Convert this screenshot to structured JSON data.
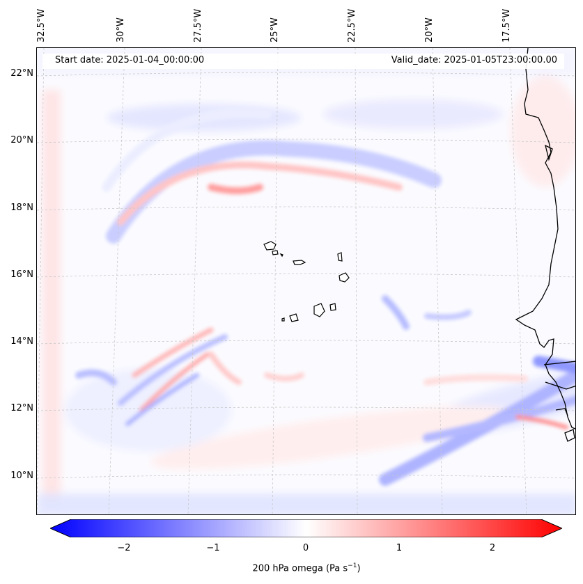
{
  "map": {
    "start_date_text": "Start date: 2025-01-04_00:00:00",
    "valid_date_text": "Valid_date: 2025-01-05T23:00:00.00",
    "lon_labels": [
      "32.5°W",
      "30°W",
      "27.5°W",
      "25°W",
      "22.5°W",
      "20°W",
      "17.5°W"
    ],
    "lat_labels": [
      "22°N",
      "20°N",
      "18°N",
      "16°N",
      "14°N",
      "12°N",
      "10°N"
    ],
    "colorbar": {
      "ticks": [
        "−2",
        "−1",
        "0",
        "1",
        "2"
      ],
      "label_main": "200 hPa omega (Pa s",
      "label_sup": "−1",
      "label_end": ")",
      "min_color": "#0000ff",
      "mid_color": "#ffffff",
      "max_color": "#ff0000",
      "range": [
        -2.6,
        2.6
      ]
    },
    "coastline_color": "#000000",
    "gridline_color": "#c8c8c8"
  }
}
